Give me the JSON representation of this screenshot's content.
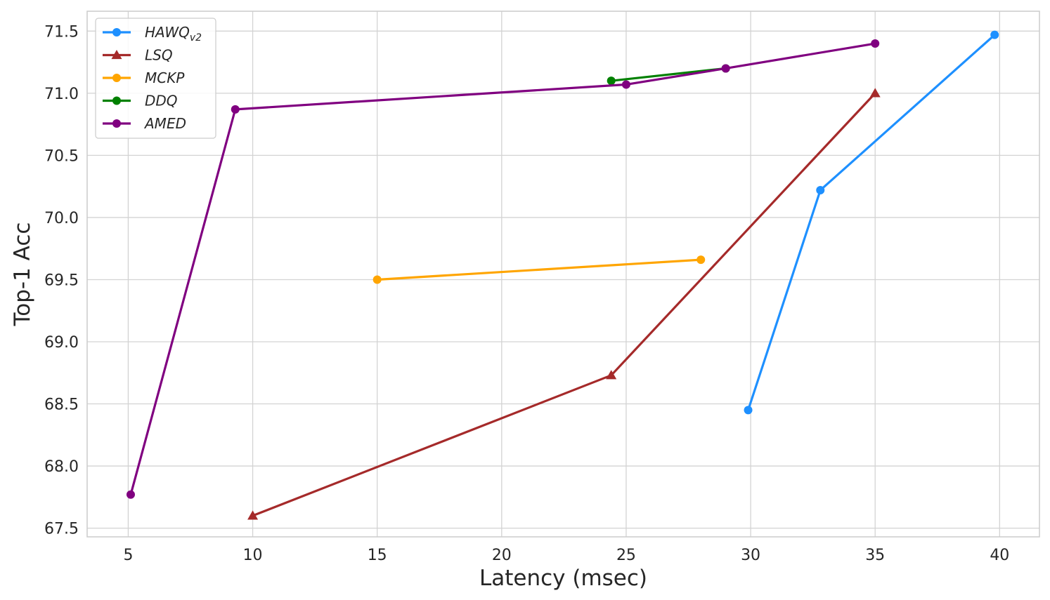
{
  "chart_data": {
    "type": "line",
    "title": "",
    "xlabel": "Latency (msec)",
    "ylabel": "Top-1 Acc",
    "xlim": [
      3.35,
      41.6
    ],
    "ylim": [
      67.43,
      71.66
    ],
    "xticks": [
      5,
      10,
      15,
      20,
      25,
      30,
      35,
      40
    ],
    "yticks": [
      67.5,
      68.0,
      68.5,
      69.0,
      69.5,
      70.0,
      70.5,
      71.0,
      71.5
    ],
    "xtick_labels": [
      "5",
      "10",
      "15",
      "20",
      "25",
      "30",
      "35",
      "40"
    ],
    "ytick_labels": [
      "67.5",
      "68.0",
      "68.5",
      "69.0",
      "69.5",
      "70.0",
      "70.5",
      "71.0",
      "71.5"
    ],
    "grid": true,
    "legend_position": "top-left",
    "series": [
      {
        "name": "HAWQ",
        "name_subscript": "v2",
        "color": "#1e90ff",
        "marker": "circle",
        "x": [
          29.9,
          32.8,
          39.8
        ],
        "y": [
          68.45,
          70.22,
          71.47
        ]
      },
      {
        "name": "LSQ",
        "color": "#a52a2a",
        "marker": "triangle",
        "x": [
          10.0,
          24.4,
          35.0
        ],
        "y": [
          67.6,
          68.73,
          71.0
        ]
      },
      {
        "name": "MCKP",
        "color": "#ffa500",
        "marker": "circle",
        "x": [
          15.0,
          28.0
        ],
        "y": [
          69.5,
          69.66
        ]
      },
      {
        "name": "DDQ",
        "color": "#008000",
        "marker": "circle",
        "x": [
          24.4,
          29.0
        ],
        "y": [
          71.1,
          71.2
        ]
      },
      {
        "name": "AMED",
        "color": "#800080",
        "marker": "circle",
        "x": [
          5.1,
          9.3,
          25.0,
          29.0,
          35.0
        ],
        "y": [
          67.77,
          70.87,
          71.07,
          71.2,
          71.4
        ]
      }
    ]
  }
}
